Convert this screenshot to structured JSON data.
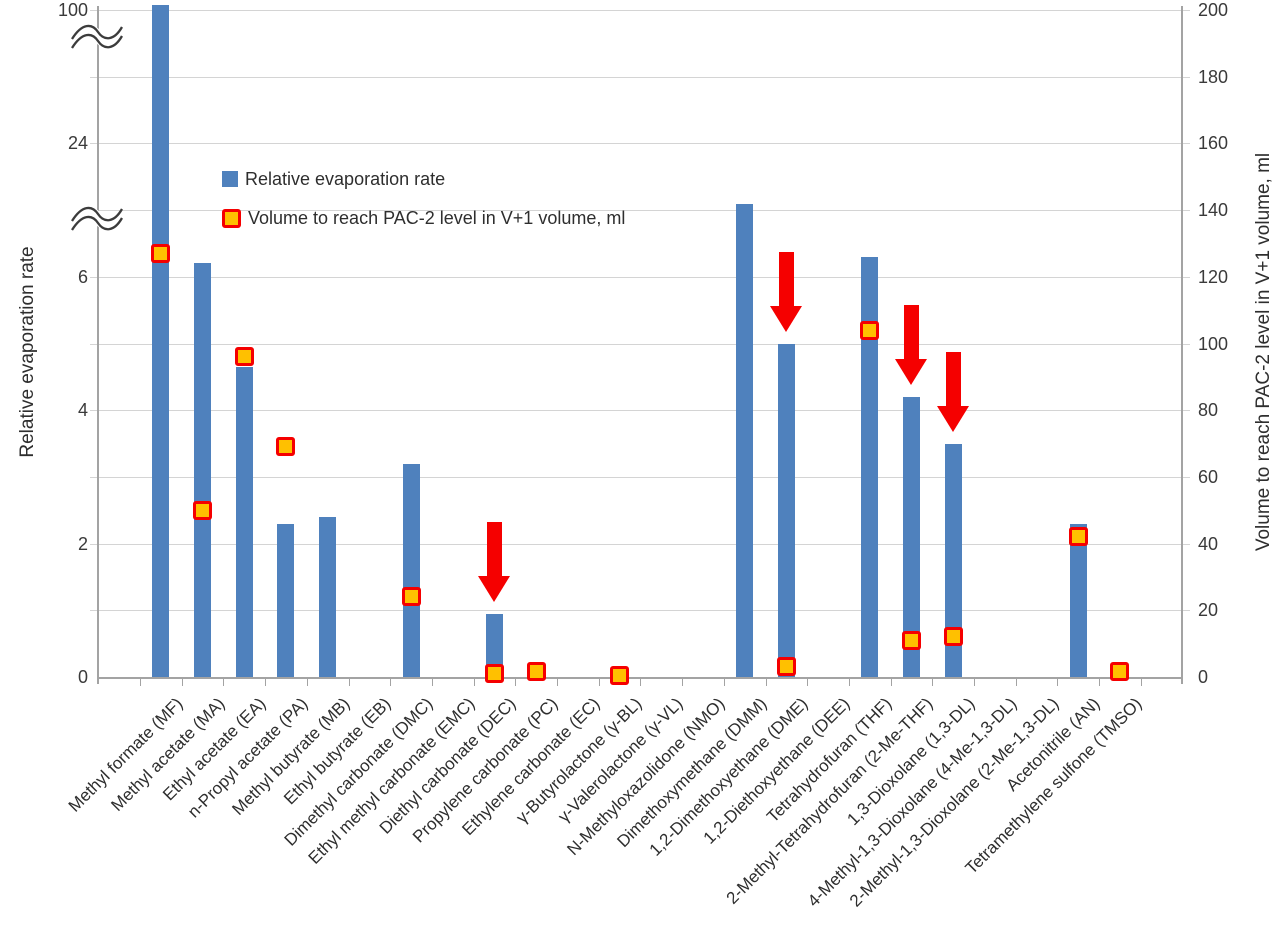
{
  "chart_data": {
    "type": "bar",
    "categories": [
      "Methyl formate (MF)",
      "Methyl acetate (MA)",
      "Ethyl acetate (EA)",
      "n-Propyl acetate (PA)",
      "Methyl butyrate (MB)",
      "Ethyl butyrate (EB)",
      "Dimethyl carbonate (DMC)",
      "Ethyl methyl carbonate (EMC)",
      "Diethyl carbonate (DEC)",
      "Propylene carbonate (PC)",
      "Ethylene carbonate (EC)",
      "γ-Butyrolactone (γ-BL)",
      "γ-Valerolactone (γ-VL)",
      "N-Methyloxazolidone (NMO)",
      "Dimethoxymethane (DMM)",
      "1,2-Dimethoxyethane (DME)",
      "1,2-Diethoxyethane (DEE)",
      "Tetrahydrofuran (THF)",
      "2-Methyl-Tetrahydrofuran (2-Me-THF)",
      "1,3-Dioxolane (1,3-DL)",
      "4-Methyl-1,3-Dioxolane (4-Me-1,3-DL)",
      "2-Methyl-1,3-Dioxolane (2-Me-1,3-DL)",
      "Acetonitrile (AN)",
      "Tetramethylene sulfone (TMSO)"
    ],
    "series": [
      {
        "name": "Relative evaporation rate",
        "axis": "left",
        "style": "bar",
        "values": [
          100,
          6.2,
          4.65,
          2.3,
          2.4,
          null,
          3.2,
          null,
          0.95,
          null,
          null,
          null,
          null,
          null,
          11,
          5,
          null,
          6.3,
          4.2,
          3.5,
          null,
          null,
          2.3,
          null
        ]
      },
      {
        "name": "Volume to reach PAC-2 level in V+1 volume, ml",
        "axis": "right",
        "style": "square-marker",
        "values": [
          127,
          50,
          96,
          69,
          null,
          null,
          24,
          null,
          1,
          1.5,
          null,
          0.5,
          null,
          null,
          null,
          3,
          null,
          104,
          11,
          12,
          null,
          null,
          42,
          1.5
        ]
      }
    ],
    "left_axis": {
      "title": "Relative evaporation rate",
      "tick_labels": [
        "0",
        "2",
        "4",
        "6",
        "24",
        "100"
      ],
      "tick_rows": [
        0,
        2,
        4,
        6,
        8,
        10
      ],
      "broken_scale": true,
      "breaks": [
        "between 6 and 24",
        "between 24 and 100"
      ]
    },
    "right_axis": {
      "title": "Volume to reach PAC-2 level in V+1 volume, ml",
      "min": 0,
      "max": 200,
      "step": 20
    },
    "legend": {
      "position": "inside-top-left",
      "items": [
        {
          "label": "Relative evaporation rate",
          "swatch": "blue-bar"
        },
        {
          "label": "Volume to reach PAC-2 level in V+1 volume, ml",
          "swatch": "yellow-square-red-border"
        }
      ]
    },
    "annotations": {
      "red_down_arrows_on": [
        "Diethyl carbonate (DEC)",
        "1,2-Dimethoxyethane (DME)",
        "2-Methyl-Tetrahydrofuran (2-Me-THF)",
        "1,3-Dioxolane (1,3-DL)"
      ]
    },
    "gridlines": "horizontal",
    "colors": {
      "bar": "#4f81bd",
      "marker_fill": "#ffc000",
      "marker_border": "#f50000",
      "arrow": "#f50000",
      "gridline": "#d4d4d4",
      "axis_line": "#a3a3a3",
      "text": "#2e2e2e",
      "background": "#ffffff"
    }
  }
}
